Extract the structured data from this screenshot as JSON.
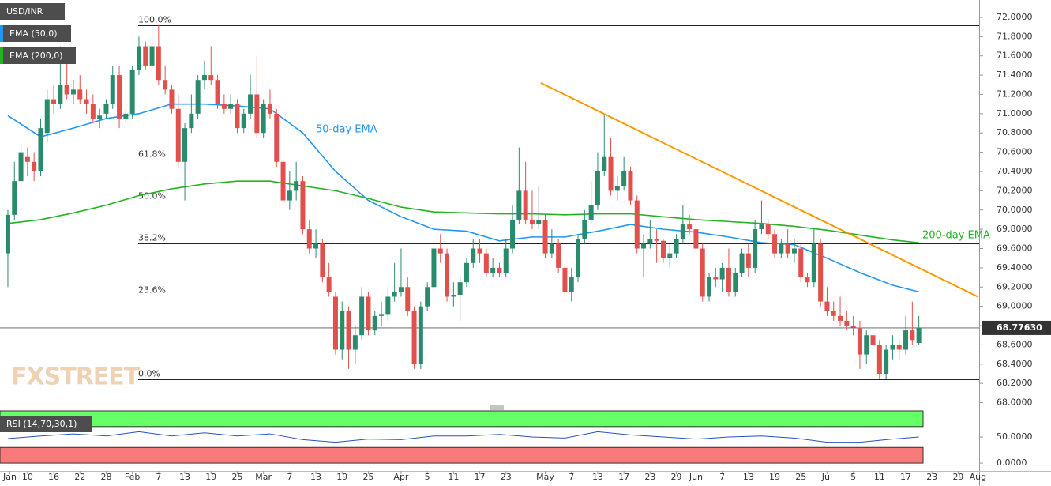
{
  "chart_data": {
    "type": "candlestick",
    "series_name": "USD/INR",
    "up_color": "#2a8a6c",
    "down_color": "#e0514d",
    "xlim": [
      -1.2,
      148.2
    ],
    "ylim": [
      67.98,
      72.18
    ],
    "xticks": [
      {
        "value": 0.3,
        "label": "Jan"
      },
      {
        "value": 3,
        "label": "10"
      },
      {
        "value": 7,
        "label": "16"
      },
      {
        "value": 11,
        "label": "22"
      },
      {
        "value": 15,
        "label": "28"
      },
      {
        "value": 19,
        "label": "Feb"
      },
      {
        "value": 23,
        "label": "7"
      },
      {
        "value": 27,
        "label": "13"
      },
      {
        "value": 31,
        "label": "19"
      },
      {
        "value": 35,
        "label": "25"
      },
      {
        "value": 39,
        "label": "Mar"
      },
      {
        "value": 43,
        "label": "7"
      },
      {
        "value": 47,
        "label": "13"
      },
      {
        "value": 51,
        "label": "19"
      },
      {
        "value": 55,
        "label": "25"
      },
      {
        "value": 60,
        "label": "Apr"
      },
      {
        "value": 64,
        "label": "5"
      },
      {
        "value": 68,
        "label": "11"
      },
      {
        "value": 72,
        "label": "17"
      },
      {
        "value": 76,
        "label": "23"
      },
      {
        "value": 82,
        "label": "May"
      },
      {
        "value": 86,
        "label": "7"
      },
      {
        "value": 90,
        "label": "13"
      },
      {
        "value": 94,
        "label": "17"
      },
      {
        "value": 98,
        "label": "23"
      },
      {
        "value": 102,
        "label": "29"
      },
      {
        "value": 105,
        "label": "Jun"
      },
      {
        "value": 109,
        "label": "7"
      },
      {
        "value": 113,
        "label": "13"
      },
      {
        "value": 117,
        "label": "19"
      },
      {
        "value": 121,
        "label": "25"
      },
      {
        "value": 125,
        "label": "Jul"
      },
      {
        "value": 129,
        "label": "5"
      },
      {
        "value": 133,
        "label": "11"
      },
      {
        "value": 137,
        "label": "17"
      },
      {
        "value": 141,
        "label": "23"
      },
      {
        "value": 145,
        "label": "29"
      },
      {
        "value": 148,
        "label": "Aug"
      }
    ],
    "yticks": [
      {
        "value": 68,
        "label": "68.0000"
      },
      {
        "value": 68.2,
        "label": "68.2000"
      },
      {
        "value": 68.4,
        "label": "68.4000"
      },
      {
        "value": 68.6,
        "label": "68.6000"
      },
      {
        "value": 68.8,
        "label": "68.8000"
      },
      {
        "value": 69,
        "label": "69.0000"
      },
      {
        "value": 69.2,
        "label": "69.2000"
      },
      {
        "value": 69.4,
        "label": "69.4000"
      },
      {
        "value": 69.6,
        "label": "69.6000"
      },
      {
        "value": 69.8,
        "label": "69.8000"
      },
      {
        "value": 70,
        "label": "70.0000"
      },
      {
        "value": 70.2,
        "label": "70.2000"
      },
      {
        "value": 70.4,
        "label": "70.4000"
      },
      {
        "value": 70.6,
        "label": "70.6000"
      },
      {
        "value": 70.8,
        "label": "70.8000"
      },
      {
        "value": 71,
        "label": "71.0000"
      },
      {
        "value": 71.2,
        "label": "71.2000"
      },
      {
        "value": 71.4,
        "label": "71.4000"
      },
      {
        "value": 71.6,
        "label": "71.6000"
      },
      {
        "value": 71.8,
        "label": "71.8000"
      },
      {
        "value": 72,
        "label": "72.0000"
      }
    ],
    "last_price": {
      "value": 68.7763,
      "label": "68.77630"
    },
    "candles": [
      [
        69.55,
        70.0,
        69.2,
        69.95
      ],
      [
        69.95,
        70.5,
        69.9,
        70.3
      ],
      [
        70.3,
        70.7,
        70.2,
        70.6
      ],
      [
        70.55,
        70.65,
        70.35,
        70.5
      ],
      [
        70.5,
        70.6,
        70.3,
        70.4
      ],
      [
        70.4,
        70.95,
        70.35,
        70.85
      ],
      [
        70.8,
        71.25,
        70.7,
        71.15
      ],
      [
        71.15,
        71.3,
        71.0,
        71.1
      ],
      [
        71.1,
        71.7,
        71.05,
        71.3
      ],
      [
        71.3,
        71.6,
        71.15,
        71.2
      ],
      [
        71.2,
        71.35,
        71.1,
        71.25
      ],
      [
        71.25,
        71.4,
        71.1,
        71.15
      ],
      [
        71.15,
        71.25,
        71.0,
        71.1
      ],
      [
        71.1,
        71.2,
        70.9,
        70.95
      ],
      [
        70.95,
        71.05,
        70.85,
        70.98
      ],
      [
        71.0,
        71.15,
        70.95,
        71.1
      ],
      [
        71.1,
        71.5,
        71.05,
        71.4
      ],
      [
        71.4,
        71.5,
        70.85,
        70.95
      ],
      [
        70.95,
        71.05,
        70.9,
        71.0
      ],
      [
        71.0,
        71.5,
        70.95,
        71.45
      ],
      [
        71.45,
        71.8,
        71.4,
        71.7
      ],
      [
        71.7,
        71.75,
        71.45,
        71.5
      ],
      [
        71.5,
        71.9,
        71.45,
        71.7
      ],
      [
        71.7,
        71.92,
        71.3,
        71.35
      ],
      [
        71.35,
        71.5,
        71.2,
        71.25
      ],
      [
        71.25,
        71.3,
        71.0,
        71.05
      ],
      [
        71.05,
        71.2,
        70.45,
        70.5
      ],
      [
        70.5,
        70.9,
        70.1,
        70.85
      ],
      [
        70.85,
        71.2,
        70.8,
        71.0
      ],
      [
        71.0,
        71.4,
        70.95,
        71.35
      ],
      [
        71.35,
        71.55,
        71.25,
        71.4
      ],
      [
        71.4,
        71.7,
        71.3,
        71.35
      ],
      [
        71.35,
        71.4,
        71.05,
        71.1
      ],
      [
        71.1,
        71.2,
        71.0,
        71.05
      ],
      [
        71.05,
        71.2,
        71.0,
        71.1
      ],
      [
        71.1,
        71.15,
        70.8,
        70.85
      ],
      [
        70.85,
        71.05,
        70.8,
        71.0
      ],
      [
        71.0,
        71.4,
        70.95,
        71.2
      ],
      [
        71.2,
        71.6,
        70.75,
        70.8
      ],
      [
        70.8,
        71.15,
        70.75,
        71.1
      ],
      [
        71.1,
        71.25,
        70.95,
        71.0
      ],
      [
        71.0,
        71.05,
        70.45,
        70.5
      ],
      [
        70.5,
        70.55,
        70.05,
        70.1
      ],
      [
        70.1,
        70.4,
        70.0,
        70.2
      ],
      [
        70.2,
        70.5,
        70.1,
        70.3
      ],
      [
        70.3,
        70.35,
        69.75,
        69.8
      ],
      [
        69.8,
        69.9,
        69.55,
        69.6
      ],
      [
        69.6,
        69.8,
        69.5,
        69.65
      ],
      [
        69.65,
        69.7,
        69.25,
        69.3
      ],
      [
        69.3,
        69.45,
        69.1,
        69.15
      ],
      [
        69.1,
        69.15,
        68.5,
        68.55
      ],
      [
        68.55,
        69.05,
        68.45,
        68.95
      ],
      [
        68.95,
        69.0,
        68.35,
        68.55
      ],
      [
        68.55,
        68.8,
        68.4,
        68.7
      ],
      [
        68.7,
        69.2,
        68.65,
        69.1
      ],
      [
        69.1,
        69.15,
        68.7,
        68.75
      ],
      [
        68.75,
        68.95,
        68.7,
        68.9
      ],
      [
        68.9,
        69.05,
        68.8,
        68.92
      ],
      [
        68.92,
        69.2,
        68.85,
        69.1
      ],
      [
        69.1,
        69.45,
        69.05,
        69.15
      ],
      [
        69.15,
        69.6,
        69.1,
        69.2
      ],
      [
        69.2,
        69.3,
        68.9,
        68.95
      ],
      [
        68.95,
        69.0,
        68.35,
        68.4
      ],
      [
        68.4,
        69.05,
        68.35,
        69.0
      ],
      [
        69.0,
        69.25,
        68.95,
        69.2
      ],
      [
        69.2,
        69.7,
        69.15,
        69.6
      ],
      [
        69.6,
        69.75,
        69.45,
        69.55
      ],
      [
        69.55,
        69.6,
        69.05,
        69.1
      ],
      [
        69.1,
        69.25,
        69.0,
        69.12
      ],
      [
        69.12,
        69.3,
        68.85,
        69.25
      ],
      [
        69.25,
        69.5,
        69.2,
        69.45
      ],
      [
        69.45,
        69.7,
        69.4,
        69.6
      ],
      [
        69.6,
        69.7,
        69.45,
        69.55
      ],
      [
        69.55,
        69.6,
        69.3,
        69.35
      ],
      [
        69.35,
        69.5,
        69.3,
        69.4
      ],
      [
        69.4,
        69.45,
        69.3,
        69.35
      ],
      [
        69.35,
        69.7,
        69.3,
        69.6
      ],
      [
        69.6,
        70.05,
        69.55,
        69.9
      ],
      [
        69.9,
        70.65,
        69.85,
        70.2
      ],
      [
        70.2,
        70.5,
        69.85,
        69.9
      ],
      [
        69.9,
        70.2,
        69.8,
        69.85
      ],
      [
        69.85,
        70.25,
        69.8,
        69.9
      ],
      [
        69.9,
        69.95,
        69.5,
        69.55
      ],
      [
        69.55,
        69.8,
        69.5,
        69.65
      ],
      [
        69.65,
        69.7,
        69.35,
        69.4
      ],
      [
        69.4,
        69.45,
        69.1,
        69.15
      ],
      [
        69.15,
        69.4,
        69.05,
        69.3
      ],
      [
        69.3,
        69.75,
        69.25,
        69.7
      ],
      [
        69.7,
        70.0,
        69.65,
        69.9
      ],
      [
        69.9,
        70.3,
        69.85,
        70.05
      ],
      [
        70.05,
        70.6,
        70.0,
        70.4
      ],
      [
        70.4,
        70.98,
        70.35,
        70.55
      ],
      [
        70.55,
        70.75,
        70.15,
        70.2
      ],
      [
        70.2,
        70.35,
        70.1,
        70.25
      ],
      [
        70.25,
        70.55,
        70.2,
        70.4
      ],
      [
        70.4,
        70.45,
        70.05,
        70.1
      ],
      [
        70.1,
        70.15,
        69.55,
        69.6
      ],
      [
        69.6,
        69.75,
        69.3,
        69.65
      ],
      [
        69.65,
        69.9,
        69.6,
        69.7
      ],
      [
        69.7,
        69.8,
        69.45,
        69.68
      ],
      [
        69.68,
        69.7,
        69.45,
        69.5
      ],
      [
        69.5,
        69.65,
        69.4,
        69.55
      ],
      [
        69.55,
        69.75,
        69.5,
        69.7
      ],
      [
        69.7,
        70.05,
        69.65,
        69.85
      ],
      [
        69.85,
        69.95,
        69.75,
        69.8
      ],
      [
        69.8,
        69.85,
        69.55,
        69.6
      ],
      [
        69.6,
        69.65,
        69.05,
        69.1
      ],
      [
        69.1,
        69.35,
        69.05,
        69.3
      ],
      [
        69.3,
        69.4,
        69.2,
        69.28
      ],
      [
        69.28,
        69.45,
        69.15,
        69.4
      ],
      [
        69.4,
        69.6,
        69.1,
        69.15
      ],
      [
        69.15,
        69.4,
        69.1,
        69.35
      ],
      [
        69.35,
        69.6,
        69.3,
        69.55
      ],
      [
        69.55,
        69.65,
        69.3,
        69.4
      ],
      [
        69.4,
        69.9,
        69.35,
        69.8
      ],
      [
        69.8,
        70.1,
        69.75,
        69.85
      ],
      [
        69.85,
        69.9,
        69.7,
        69.75
      ],
      [
        69.75,
        69.8,
        69.5,
        69.55
      ],
      [
        69.55,
        69.7,
        69.5,
        69.65
      ],
      [
        69.65,
        69.8,
        69.5,
        69.55
      ],
      [
        69.55,
        69.7,
        69.45,
        69.6
      ],
      [
        69.6,
        69.65,
        69.25,
        69.3
      ],
      [
        69.3,
        69.35,
        69.2,
        69.25
      ],
      [
        69.25,
        69.8,
        69.2,
        69.65
      ],
      [
        69.65,
        69.7,
        69.0,
        69.05
      ],
      [
        69.05,
        69.2,
        68.9,
        68.95
      ],
      [
        68.95,
        69.05,
        68.85,
        68.9
      ],
      [
        68.9,
        69.1,
        68.8,
        68.85
      ],
      [
        68.85,
        68.95,
        68.75,
        68.8
      ],
      [
        68.8,
        68.9,
        68.7,
        68.78
      ],
      [
        68.78,
        68.85,
        68.35,
        68.5
      ],
      [
        68.5,
        68.75,
        68.4,
        68.7
      ],
      [
        68.7,
        68.75,
        68.45,
        68.6
      ],
      [
        68.6,
        68.65,
        68.25,
        68.3
      ],
      [
        68.3,
        68.6,
        68.25,
        68.55
      ],
      [
        68.55,
        68.7,
        68.45,
        68.6
      ],
      [
        68.6,
        68.65,
        68.45,
        68.55
      ],
      [
        68.55,
        68.9,
        68.5,
        68.75
      ],
      [
        68.75,
        69.05,
        68.6,
        68.65
      ],
      [
        68.62,
        68.9,
        68.6,
        68.7763
      ]
    ],
    "series": [
      {
        "name": "EMA (50,0)",
        "color": "#2196f3",
        "annotation": "50-day EMA",
        "x": [
          0,
          5,
          10,
          15,
          20,
          25,
          30,
          35,
          40,
          45,
          50,
          55,
          60,
          65,
          70,
          75,
          80,
          85,
          90,
          95,
          100,
          105,
          110,
          115,
          120,
          125,
          130,
          135,
          139
        ],
        "values": [
          70.98,
          70.76,
          70.85,
          70.95,
          71.0,
          71.1,
          71.1,
          71.08,
          71.05,
          70.8,
          70.4,
          70.1,
          69.93,
          69.8,
          69.78,
          69.68,
          69.72,
          69.72,
          69.78,
          69.85,
          69.8,
          69.77,
          69.72,
          69.66,
          69.64,
          69.5,
          69.35,
          69.22,
          69.15
        ]
      },
      {
        "name": "EMA (200,0)",
        "color": "#22b322",
        "annotation": "200-day EMA",
        "x": [
          0,
          5,
          10,
          15,
          20,
          25,
          30,
          35,
          40,
          45,
          50,
          55,
          60,
          65,
          70,
          75,
          80,
          85,
          90,
          95,
          100,
          105,
          110,
          115,
          120,
          125,
          130,
          135,
          139
        ],
        "values": [
          69.86,
          69.9,
          69.97,
          70.05,
          70.15,
          70.22,
          70.27,
          70.3,
          70.3,
          70.25,
          70.2,
          70.12,
          70.03,
          69.98,
          69.97,
          69.96,
          69.96,
          69.95,
          69.96,
          69.96,
          69.93,
          69.9,
          69.88,
          69.86,
          69.83,
          69.79,
          69.74,
          69.69,
          69.66
        ]
      }
    ],
    "fib_levels": [
      {
        "label": "100.0%",
        "value": 71.92
      },
      {
        "label": "61.8%",
        "value": 70.52
      },
      {
        "label": "50.0%",
        "value": 70.09
      },
      {
        "label": "38.2%",
        "value": 69.65
      },
      {
        "label": "23.6%",
        "value": 69.11
      },
      {
        "label": "0.0%",
        "value": 68.24
      }
    ],
    "trendline": {
      "color": "#ff9800",
      "x": [
        81.3,
        148
      ],
      "values": [
        71.32,
        69.1
      ]
    },
    "watermark": "FXSTREET",
    "rsi": {
      "label": "RSI (14,70,30,1)",
      "color": "#2a52be",
      "ylim": [
        -15,
        103
      ],
      "yticks": [
        {
          "value": 0,
          "label": "0.0000"
        },
        {
          "value": 50,
          "label": "50.0000"
        }
      ],
      "overbought_zone": [
        70,
        100
      ],
      "oversold_zone": [
        0,
        30
      ],
      "x": [
        0,
        5,
        10,
        15,
        20,
        25,
        30,
        35,
        40,
        45,
        50,
        55,
        60,
        65,
        70,
        75,
        80,
        85,
        90,
        95,
        100,
        105,
        110,
        115,
        120,
        125,
        130,
        135,
        139
      ],
      "values": [
        47,
        52,
        56,
        52,
        60,
        52,
        58,
        52,
        56,
        45,
        40,
        46,
        45,
        52,
        52,
        55,
        50,
        48,
        60,
        54,
        50,
        46,
        50,
        52,
        48,
        40,
        40,
        46,
        50
      ]
    }
  }
}
